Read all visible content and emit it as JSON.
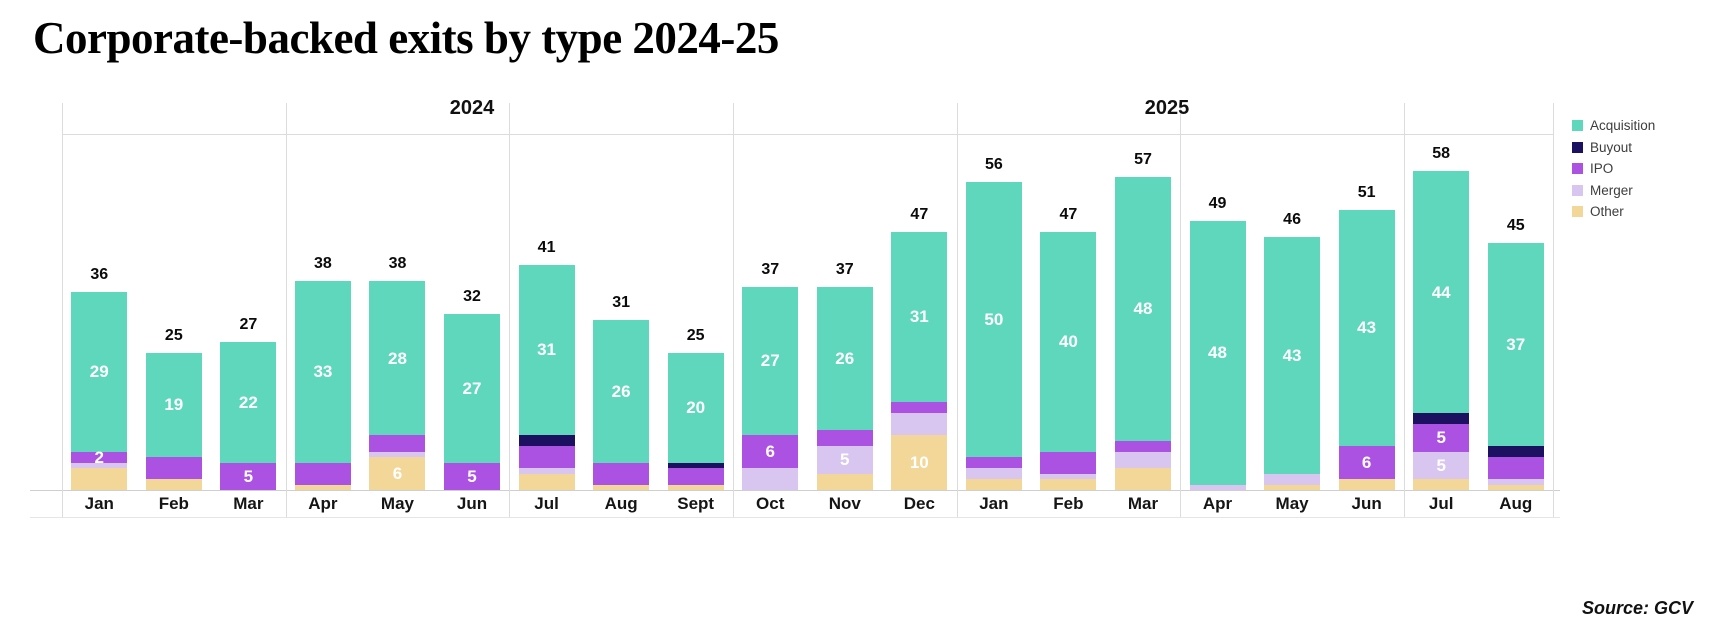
{
  "title": "Corporate-backed exits by type 2024-25",
  "source": "Source: GCV",
  "legend": [
    {
      "label": "Acquisition",
      "color": "#5fd7bc"
    },
    {
      "label": "Buyout",
      "color": "#1c1060"
    },
    {
      "label": "IPO",
      "color": "#ac52e3"
    },
    {
      "label": "Merger",
      "color": "#d8c5f0"
    },
    {
      "label": "Other",
      "color": "#f3d799"
    }
  ],
  "chart_data": {
    "type": "bar",
    "stacked": true,
    "title": "Corporate-backed exits by type 2024-25",
    "xlabel": "",
    "ylabel": "",
    "ylim": [
      0,
      60
    ],
    "grid": false,
    "legend_position": "right",
    "stack_order_bottom_to_top": [
      "Other",
      "Merger",
      "IPO",
      "Buyout",
      "Acquisition"
    ],
    "facets": [
      {
        "label": "2024",
        "months": [
          "Jan",
          "Feb",
          "Mar",
          "Apr",
          "May",
          "Jun",
          "Jul",
          "Aug",
          "Sept",
          "Oct",
          "Nov",
          "Dec"
        ]
      },
      {
        "label": "2025",
        "months": [
          "Jan",
          "Feb",
          "Mar",
          "Apr",
          "May",
          "Jun",
          "Jul",
          "Aug"
        ]
      }
    ],
    "categories": [
      "Jan 2024",
      "Feb 2024",
      "Mar 2024",
      "Apr 2024",
      "May 2024",
      "Jun 2024",
      "Jul 2024",
      "Aug 2024",
      "Sept 2024",
      "Oct 2024",
      "Nov 2024",
      "Dec 2024",
      "Jan 2025",
      "Feb 2025",
      "Mar 2025",
      "Apr 2025",
      "May 2025",
      "Jun 2025",
      "Jul 2025",
      "Aug 2025"
    ],
    "totals": [
      36,
      25,
      27,
      38,
      38,
      32,
      41,
      31,
      25,
      37,
      37,
      47,
      56,
      47,
      57,
      49,
      46,
      51,
      58,
      45
    ],
    "series": [
      {
        "name": "Acquisition",
        "values": [
          29,
          19,
          22,
          33,
          28,
          27,
          31,
          26,
          20,
          27,
          26,
          31,
          50,
          40,
          48,
          48,
          43,
          43,
          44,
          37
        ]
      },
      {
        "name": "Buyout",
        "values": [
          0,
          0,
          0,
          0,
          0,
          0,
          2,
          0,
          1,
          0,
          0,
          0,
          0,
          0,
          0,
          0,
          0,
          0,
          2,
          2
        ]
      },
      {
        "name": "IPO",
        "values": [
          2,
          4,
          5,
          4,
          3,
          5,
          4,
          4,
          3,
          6,
          3,
          2,
          2,
          4,
          2,
          0,
          0,
          6,
          5,
          4
        ]
      },
      {
        "name": "Merger",
        "values": [
          1,
          0,
          0,
          0,
          1,
          0,
          1,
          0,
          0,
          4,
          5,
          4,
          2,
          1,
          3,
          1,
          2,
          0,
          5,
          1
        ]
      },
      {
        "name": "Other",
        "values": [
          4,
          2,
          0,
          1,
          6,
          0,
          3,
          1,
          1,
          0,
          3,
          10,
          2,
          2,
          4,
          0,
          1,
          2,
          2,
          1
        ]
      }
    ],
    "value_labels_shown": {
      "Acquisition": "all",
      "Buyout": [],
      "IPO": [
        0,
        2,
        5,
        9,
        17,
        18
      ],
      "Merger": [
        10,
        18
      ],
      "Other": [
        4,
        11
      ]
    }
  }
}
